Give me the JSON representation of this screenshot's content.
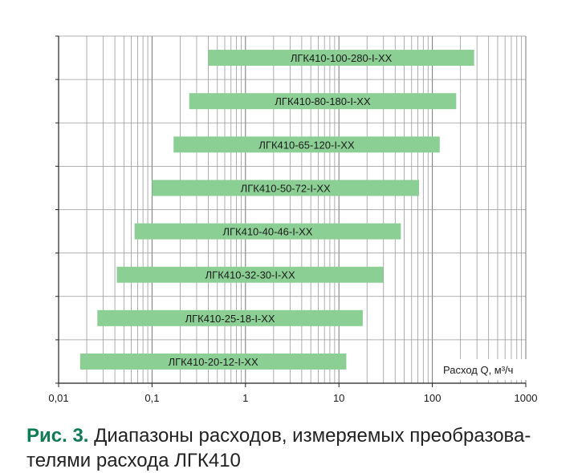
{
  "chart_data": {
    "type": "bar",
    "orientation": "horizontal-range",
    "x_scale": "log",
    "xlim": [
      0.01,
      1000
    ],
    "x_ticks": [
      "0,01",
      "0,1",
      "1",
      "10",
      "100",
      "1000"
    ],
    "x_tick_values": [
      0.01,
      0.1,
      1,
      10,
      100,
      1000
    ],
    "xlabel": "Расход Q, м³/ч",
    "grid": true,
    "bar_color": "#8ccf95",
    "grid_color": "#999999",
    "axis_color": "#222222",
    "series": [
      {
        "name": "ЛГК410-100-280-I-XX",
        "min": 0.4,
        "max": 280
      },
      {
        "name": "ЛГК410-80-180-I-XX",
        "min": 0.25,
        "max": 180
      },
      {
        "name": "ЛГК410-65-120-I-XX",
        "min": 0.17,
        "max": 120
      },
      {
        "name": "ЛГК410-50-72-I-XX",
        "min": 0.1,
        "max": 72
      },
      {
        "name": "ЛГК410-40-46-I-XX",
        "min": 0.065,
        "max": 46
      },
      {
        "name": "ЛГК410-32-30-I-XX",
        "min": 0.042,
        "max": 30
      },
      {
        "name": "ЛГК410-25-18-I-XX",
        "min": 0.026,
        "max": 18
      },
      {
        "name": "ЛГК410-20-12-I-XX",
        "min": 0.017,
        "max": 12
      }
    ]
  },
  "caption": {
    "label": "Рис. 3.",
    "text": "Диапазоны расходов, измеряемых преобразова­телями расхода ЛГК410"
  }
}
